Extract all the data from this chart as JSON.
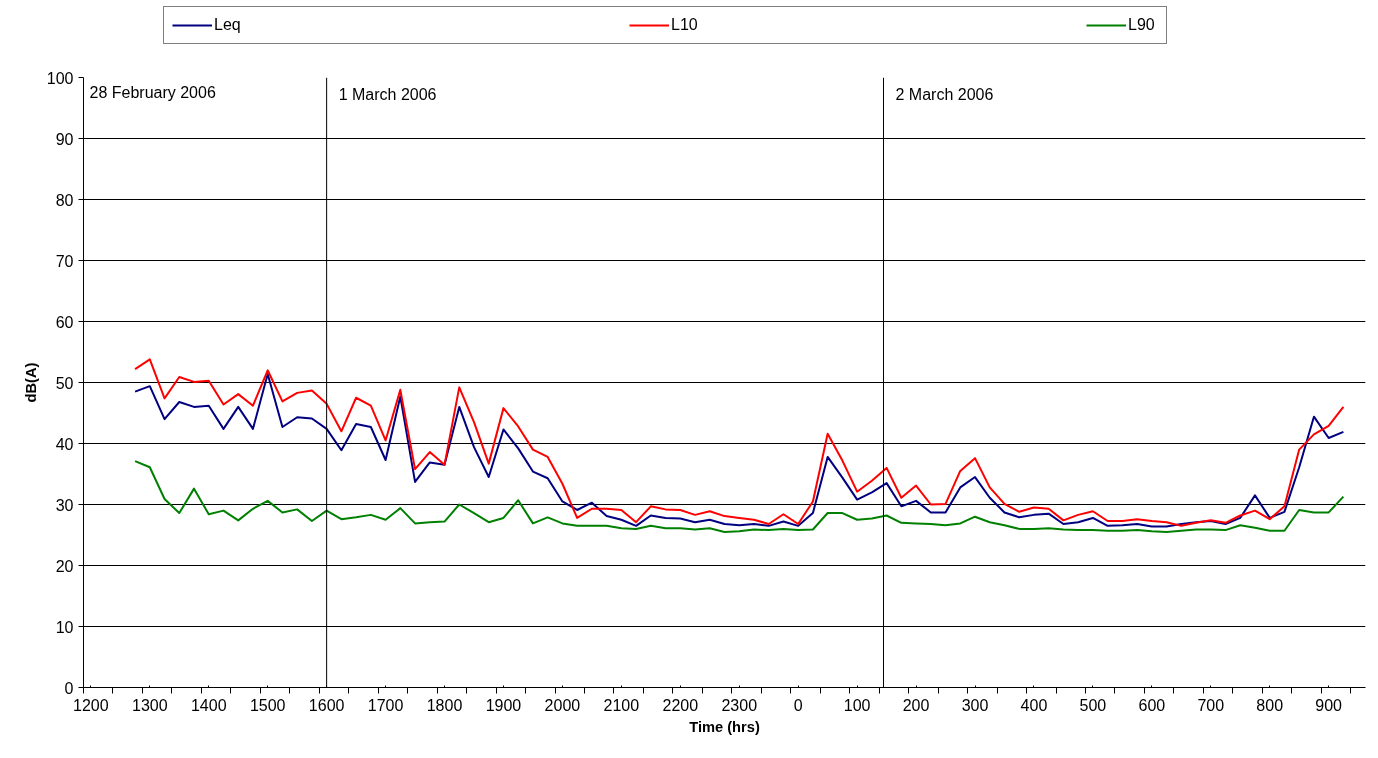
{
  "chart_data": {
    "type": "line",
    "xlabel": "Time (hrs)",
    "ylabel": "dB(A)",
    "categories": [
      "1200",
      null,
      null,
      null,
      "1300",
      null,
      null,
      null,
      "1400",
      null,
      null,
      null,
      "1500",
      null,
      null,
      null,
      "1600",
      null,
      null,
      null,
      "1700",
      null,
      null,
      null,
      "1800",
      null,
      null,
      null,
      "1900",
      null,
      null,
      null,
      "2000",
      null,
      null,
      null,
      "2100",
      null,
      null,
      null,
      "2200",
      null,
      null,
      null,
      "2300",
      null,
      null,
      null,
      "0",
      null,
      null,
      null,
      "100",
      null,
      null,
      null,
      "200",
      null,
      null,
      null,
      "300",
      null,
      null,
      null,
      "400",
      null,
      null,
      null,
      "500",
      null,
      null,
      null,
      "600",
      null,
      null,
      null,
      "700",
      null,
      null,
      null,
      "800",
      null,
      null,
      null,
      "900",
      null,
      null
    ],
    "series": [
      {
        "name": "Leq",
        "color": "#000080",
        "values": [
          null,
          null,
          null,
          48.5,
          49.4,
          44.0,
          46.8,
          46.0,
          46.2,
          42.4,
          46.0,
          42.4,
          51.4,
          42.7,
          44.3,
          44.1,
          42.4,
          38.9,
          43.2,
          42.7,
          37.3,
          47.7,
          33.7,
          36.9,
          36.5,
          46.0,
          39.4,
          34.5,
          42.3,
          39.2,
          35.4,
          34.3,
          30.5,
          29.1,
          30.3,
          28.1,
          27.5,
          26.5,
          28.2,
          27.8,
          27.7,
          27.1,
          27.5,
          26.8,
          26.6,
          26.8,
          26.5,
          27.2,
          26.5,
          28.6,
          37.8,
          34.4,
          30.8,
          32.0,
          33.5,
          29.7,
          30.6,
          28.7,
          28.7,
          32.8,
          34.5,
          31.1,
          28.7,
          27.9,
          28.3,
          28.5,
          26.8,
          27.1,
          27.8,
          26.5,
          26.6,
          26.8,
          26.4,
          26.4,
          26.8,
          27.1,
          27.3,
          26.8,
          27.8,
          31.5,
          27.8,
          28.8,
          36.1,
          44.4,
          40.9,
          41.9,
          null
        ]
      },
      {
        "name": "L10",
        "color": "#ff0000",
        "values": [
          null,
          null,
          null,
          52.2,
          53.8,
          47.4,
          50.9,
          50.1,
          50.3,
          46.4,
          48.1,
          46.2,
          52.0,
          46.9,
          48.3,
          48.7,
          46.5,
          42.0,
          47.5,
          46.2,
          40.5,
          48.8,
          35.8,
          38.6,
          36.5,
          49.2,
          43.5,
          36.7,
          45.8,
          42.8,
          39.0,
          37.8,
          33.4,
          27.8,
          29.3,
          29.3,
          29.1,
          27.1,
          29.7,
          29.2,
          29.1,
          28.3,
          28.9,
          28.1,
          27.8,
          27.5,
          26.8,
          28.4,
          26.8,
          30.5,
          41.6,
          37.2,
          32.1,
          33.9,
          36.0,
          31.1,
          33.1,
          30.0,
          30.1,
          35.5,
          37.6,
          32.8,
          30.1,
          28.8,
          29.5,
          29.3,
          27.4,
          28.3,
          28.9,
          27.3,
          27.3,
          27.6,
          27.3,
          27.1,
          26.5,
          27.0,
          27.4,
          27.0,
          28.2,
          29.0,
          27.6,
          29.7,
          39.0,
          41.5,
          42.9,
          46.0,
          null
        ]
      },
      {
        "name": "L90",
        "color": "#008000",
        "values": [
          null,
          null,
          null,
          37.1,
          36.1,
          30.9,
          28.6,
          32.6,
          28.4,
          29.0,
          27.4,
          29.3,
          30.6,
          28.7,
          29.2,
          27.3,
          29.0,
          27.6,
          27.9,
          28.3,
          27.5,
          29.4,
          26.9,
          27.1,
          27.2,
          30.0,
          28.6,
          27.1,
          27.8,
          30.7,
          26.9,
          27.9,
          26.9,
          26.5,
          26.5,
          26.5,
          26.1,
          26.0,
          26.5,
          26.1,
          26.1,
          25.9,
          26.1,
          25.5,
          25.6,
          25.9,
          25.8,
          26.0,
          25.8,
          25.9,
          28.6,
          28.6,
          27.5,
          27.7,
          28.2,
          27.0,
          26.9,
          26.8,
          26.6,
          26.9,
          28.0,
          27.1,
          26.6,
          26.0,
          26.0,
          26.1,
          25.9,
          25.8,
          25.8,
          25.7,
          25.7,
          25.8,
          25.6,
          25.5,
          25.7,
          25.9,
          25.9,
          25.8,
          26.6,
          26.2,
          25.7,
          25.7,
          29.1,
          28.7,
          28.7,
          31.3,
          null
        ]
      }
    ],
    "ylim": [
      0,
      100
    ],
    "yticks": [
      0,
      10,
      20,
      30,
      40,
      50,
      60,
      70,
      80,
      90,
      100
    ],
    "ref_lines": [
      {
        "axis": "x",
        "value": "1600",
        "label": "1 March 2006",
        "color": "#000000"
      }
    ],
    "annotations": [
      "28 February 2006",
      "2 March 2006"
    ],
    "grid": "y",
    "legend": "top",
    "marker": "none",
    "line_style": "solid"
  }
}
